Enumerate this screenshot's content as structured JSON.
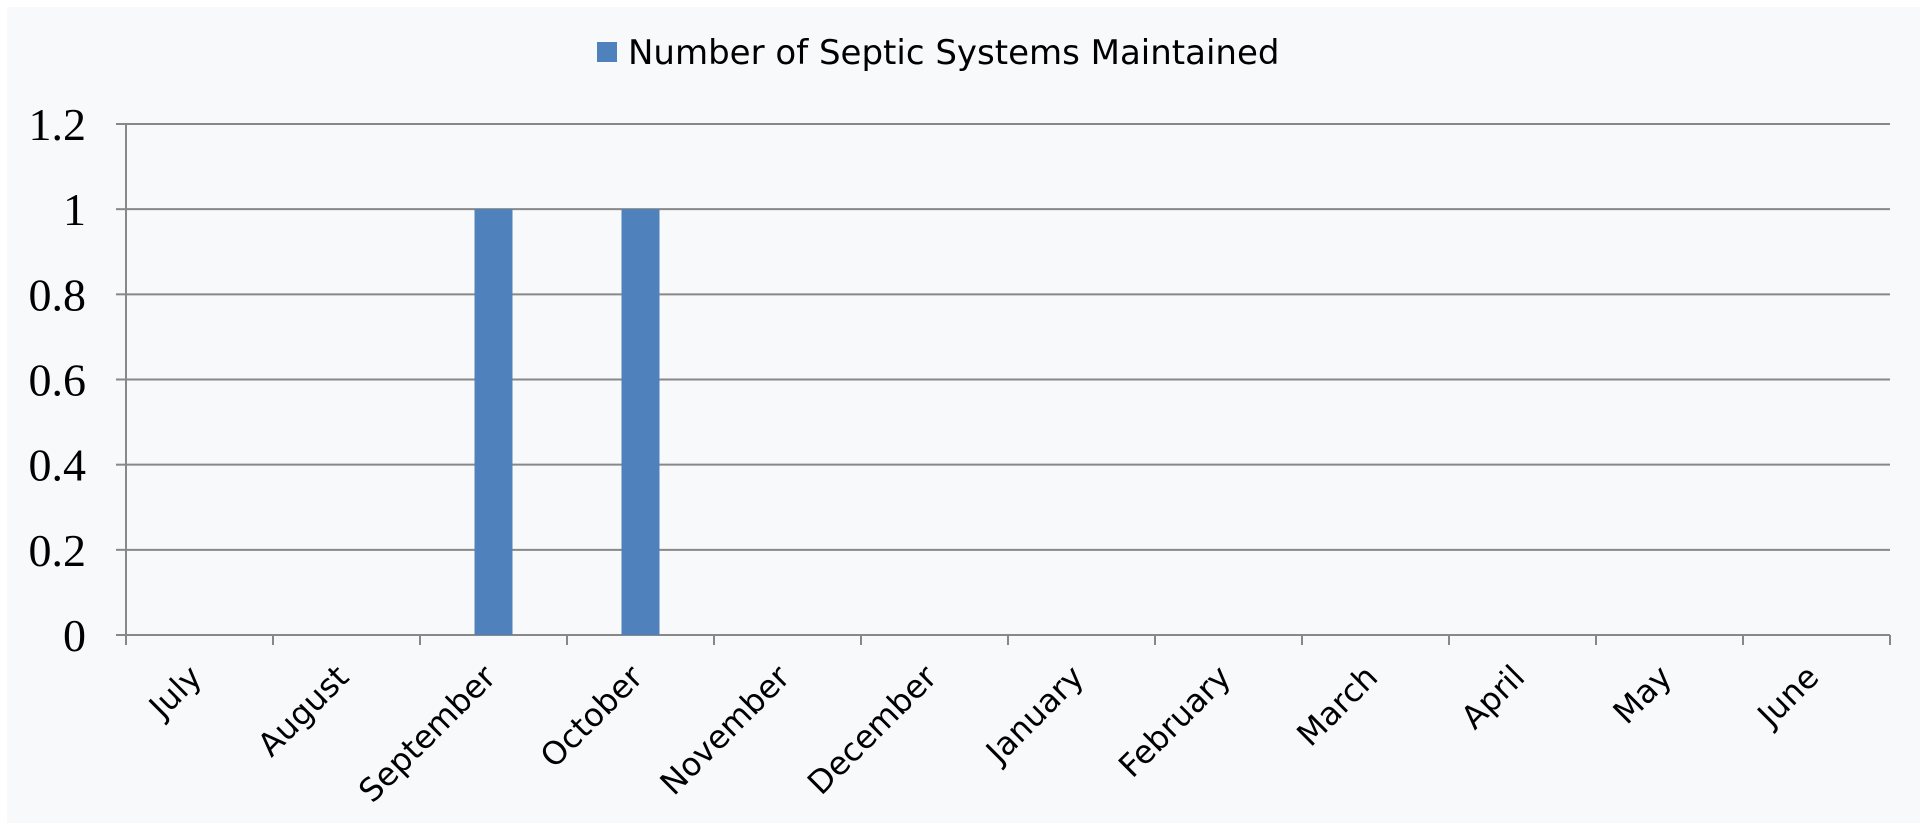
{
  "chart_data": {
    "type": "bar",
    "categories": [
      "July",
      "August",
      "September",
      "October",
      "November",
      "December",
      "January",
      "February",
      "March",
      "April",
      "May",
      "June"
    ],
    "series": [
      {
        "name": "Number of Septic Systems Maintained",
        "values": [
          0,
          0,
          1,
          1,
          0,
          0,
          0,
          0,
          0,
          0,
          0,
          0
        ],
        "color": "#4f81bd"
      }
    ],
    "y_ticks": [
      "0",
      "0.2",
      "0.4",
      "0.6",
      "0.8",
      "1",
      "1.2"
    ],
    "ylim": [
      0,
      1.2
    ],
    "grid": true,
    "legend_position": "top-center",
    "colors": {
      "grid": "#888888",
      "axis": "#888888",
      "background": "#f8f9fb"
    }
  }
}
